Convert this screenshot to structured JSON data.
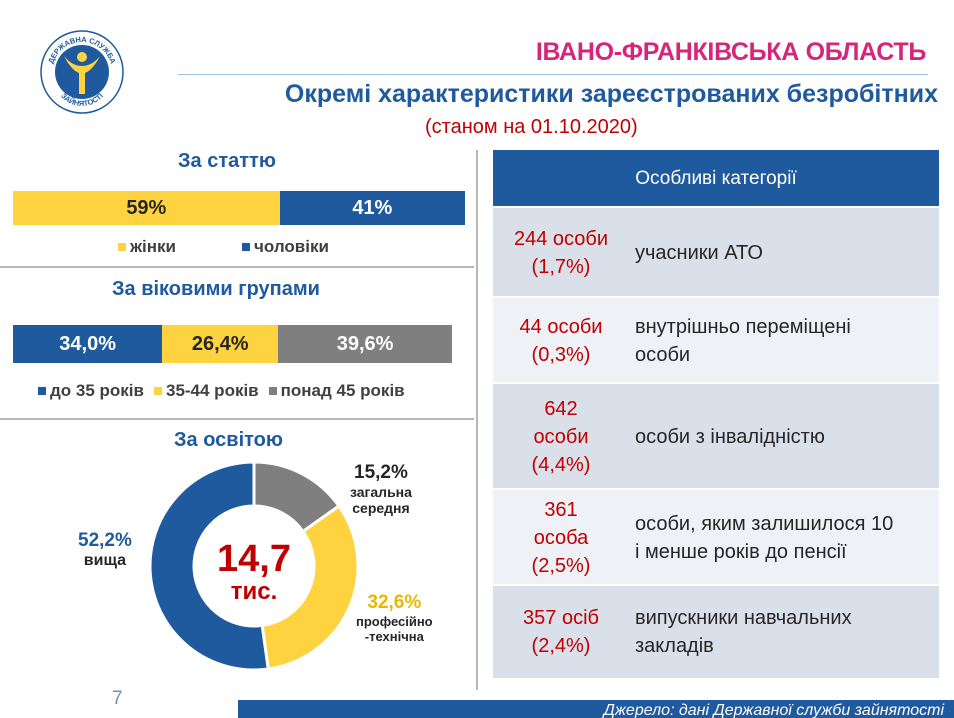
{
  "header": {
    "region": "ІВАНО-ФРАНКІВСЬКА ОБЛАСТЬ",
    "title": "Окремі характеристики зареєстрованих безробітних",
    "subtitle": "(станом на 01.10.2020)"
  },
  "logo": {
    "text_top": "ДЕРЖАВНА СЛУЖБА",
    "text_bottom": "ЗАЙНЯТОСТІ"
  },
  "colors": {
    "blue": "#1f5a9e",
    "yellow": "#ffd33f",
    "gray": "#7f7f7f",
    "red": "#c00000",
    "pink": "#d6267c"
  },
  "gender": {
    "title": "За статтю",
    "legend": [
      "жінки",
      "чоловіки"
    ]
  },
  "age": {
    "title": "За віковими групами",
    "legend": [
      "до 35 років",
      "35-44 років",
      "понад 45 років"
    ]
  },
  "education": {
    "title": "За освітою",
    "center_value": "14,7",
    "center_unit": "тис.",
    "labels": [
      {
        "value": "52,2%",
        "name": "вища"
      },
      {
        "value": "32,6%",
        "name_line1": "професійно",
        "name_line2": "-технічна"
      },
      {
        "value": "15,2%",
        "name_line1": "загальна",
        "name_line2": "середня"
      }
    ]
  },
  "chart_data": [
    {
      "type": "bar",
      "title": "За статтю",
      "stacked": true,
      "orientation": "horizontal",
      "series": [
        {
          "name": "жінки",
          "values": [
            59
          ],
          "label": "59%",
          "color": "#ffd33f"
        },
        {
          "name": "чоловіки",
          "values": [
            41
          ],
          "label": "41%",
          "color": "#1f5a9e"
        }
      ]
    },
    {
      "type": "bar",
      "title": "За віковими групами",
      "stacked": true,
      "orientation": "horizontal",
      "series": [
        {
          "name": "до 35 років",
          "values": [
            34.0
          ],
          "label": "34,0%",
          "color": "#1f5a9e"
        },
        {
          "name": "35-44 років",
          "values": [
            26.4
          ],
          "label": "26,4%",
          "color": "#ffd33f"
        },
        {
          "name": "понад 45 років",
          "values": [
            39.6
          ],
          "label": "39,6%",
          "color": "#7f7f7f"
        }
      ]
    },
    {
      "type": "pie",
      "title": "За освітою",
      "donut": true,
      "categories": [
        "вища",
        "професійно-технічна",
        "загальна середня"
      ],
      "values": [
        52.2,
        32.6,
        15.2
      ],
      "colors": [
        "#1f5a9e",
        "#ffd33f",
        "#7f7f7f"
      ]
    }
  ],
  "categories_table": {
    "header": "Особливі категорії",
    "rows": [
      {
        "count_lines": [
          "244 особи",
          "(1,7%)"
        ],
        "category_lines": [
          "учасники АТО"
        ]
      },
      {
        "count_lines": [
          "44 особи",
          "(0,3%)"
        ],
        "category_lines": [
          "внутрішньо переміщені",
          "особи"
        ]
      },
      {
        "count_lines": [
          "642",
          "особи",
          "(4,4%)"
        ],
        "category_lines": [
          "особи з інвалідністю"
        ]
      },
      {
        "count_lines": [
          "361",
          "особа",
          "(2,5%)"
        ],
        "category_lines": [
          "особи, яким залишилося 10",
          "і менше років до пенсії"
        ]
      },
      {
        "count_lines": [
          "357 осіб",
          "(2,4%)"
        ],
        "category_lines": [
          "випускники навчальних",
          "закладів"
        ]
      }
    ]
  },
  "footer": {
    "page_number": "7",
    "source": "Джерело: дані Державної служби зайнятості"
  }
}
